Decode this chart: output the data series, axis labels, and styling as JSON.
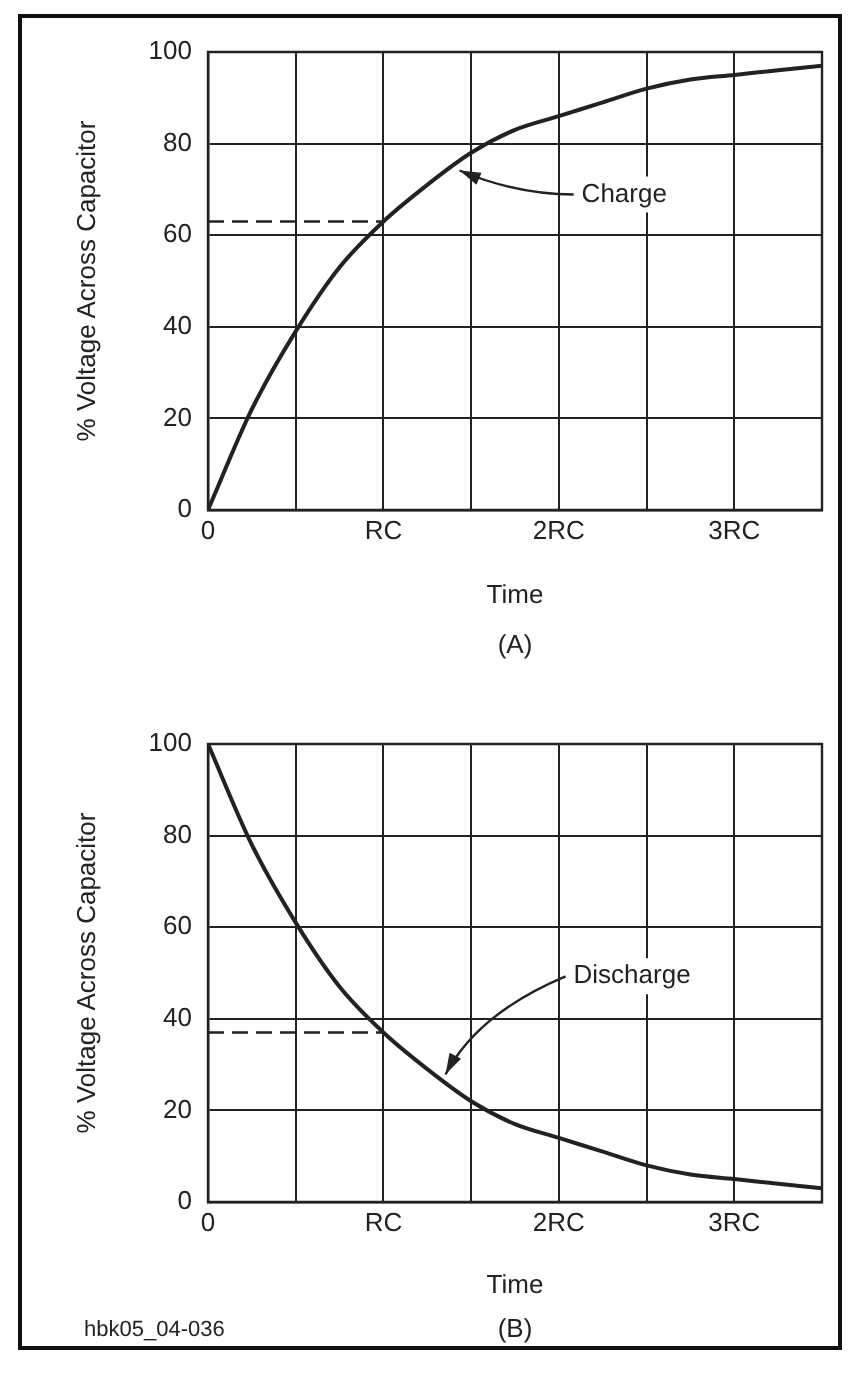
{
  "chart_data": [
    {
      "type": "line",
      "xlabel": "Time",
      "ylabel": "% Voltage Across Capacitor",
      "x": [
        0,
        0.25,
        0.5,
        0.75,
        1,
        1.25,
        1.5,
        1.75,
        2,
        2.25,
        2.5,
        2.75,
        3,
        3.25,
        3.5
      ],
      "series": [
        {
          "color": "#222222",
          "values": [
            0,
            22,
            39,
            53,
            63,
            71,
            78,
            83,
            86,
            89,
            92,
            94,
            95,
            96,
            97
          ]
        },
        {
          "type": "line",
          "line_style": "dashed",
          "color": "#222222",
          "values": [
            63,
            63,
            63,
            63,
            63,
            null,
            null,
            null,
            null,
            null,
            null,
            null,
            null,
            null,
            null
          ]
        }
      ],
      "xlim": [
        0,
        3.5
      ],
      "xticks": [
        0,
        {
          "value": 0.5,
          "label": null
        },
        {
          "value": 1,
          "label": "RC"
        },
        {
          "value": 1.5,
          "label": null
        },
        {
          "value": 2,
          "label": "2RC"
        },
        {
          "value": 2.5,
          "label": null
        },
        {
          "value": 3,
          "label": "3RC"
        },
        {
          "value": 3.5,
          "label": null
        }
      ],
      "ylim": [
        0,
        100
      ],
      "yticks": [
        0,
        20,
        40,
        60,
        80,
        100
      ],
      "grid": true,
      "marker": "none",
      "annotations": [
        {
          "text": "Charge",
          "x": 1.4,
          "y": 75
        },
        "(A)"
      ]
    },
    {
      "type": "line",
      "xlabel": "Time",
      "ylabel": "% Voltage Across Capacitor",
      "x": [
        0,
        0.25,
        0.5,
        0.75,
        1,
        1.25,
        1.5,
        1.75,
        2,
        2.25,
        2.5,
        2.75,
        3,
        3.25,
        3.5
      ],
      "series": [
        {
          "color": "#222222",
          "values": [
            100,
            78,
            61,
            47,
            37,
            29,
            22,
            17,
            14,
            11,
            8,
            6,
            5,
            4,
            3
          ]
        },
        {
          "type": "line",
          "line_style": "dashed",
          "color": "#222222",
          "values": [
            37,
            37,
            37,
            37,
            37,
            null,
            null,
            null,
            null,
            null,
            null,
            null,
            null,
            null,
            null
          ]
        }
      ],
      "xlim": [
        0,
        3.5
      ],
      "xticks": [
        0,
        {
          "value": 0.5,
          "label": null
        },
        {
          "value": 1,
          "label": "RC"
        },
        {
          "value": 1.5,
          "label": null
        },
        {
          "value": 2,
          "label": "2RC"
        },
        {
          "value": 2.5,
          "label": null
        },
        {
          "value": 3,
          "label": "3RC"
        },
        {
          "value": 3.5,
          "label": null
        }
      ],
      "ylim": [
        0,
        100
      ],
      "yticks": [
        0,
        20,
        40,
        60,
        80,
        100
      ],
      "grid": true,
      "marker": "none",
      "annotations": [
        {
          "text": "Discharge",
          "x": 1.32,
          "y": 27
        },
        "(B)",
        "hbk05_04-036"
      ]
    }
  ]
}
